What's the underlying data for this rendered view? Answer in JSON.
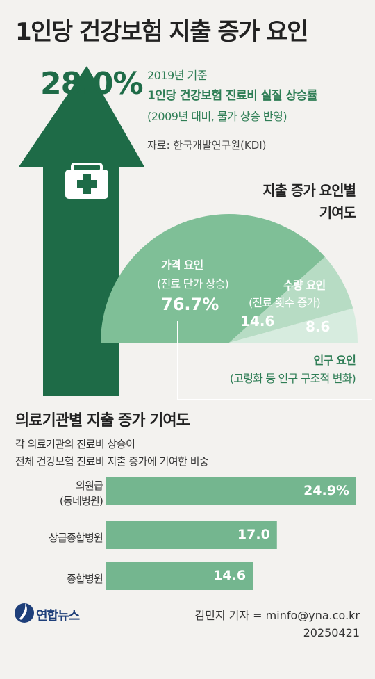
{
  "title": "1인당 건강보험 지출 증가 요인",
  "headline": {
    "rate": "28.0%",
    "note_line1": "2019년 기준",
    "note_line2": "1인당 건강보험 진료비 실질 상승률",
    "note_line3": "(2009년 대비, 물가 상승 반영)",
    "source": "자료: 한국개발연구원(KDI)"
  },
  "pie_section": {
    "title_line1": "지출 증가 요인별",
    "title_line2": "기여도"
  },
  "bar_section": {
    "title": "의료기관별 지출 증가 기여도",
    "desc_line1": "각 의료기관의 진료비 상승이",
    "desc_line2": "전체 건강보험 진료비 지출 증가에 기여한 비중"
  },
  "footer": {
    "logo": "연합뉴스",
    "byline": "김민지 기자 = minfo@yna.co.kr",
    "date": "20250421"
  },
  "colors": {
    "dark_green": "#1e6b47",
    "medium_green": "#7fbf97",
    "light_green": "#b7dcc4",
    "lightest_green": "#d7ecdf",
    "bar_green": "#74b68f",
    "navy": "#1e3f7a"
  },
  "icons": {
    "medical_kit": "medical-kit-icon",
    "logo_mark": "yonhap-logo-icon"
  },
  "chart_data": [
    {
      "type": "pie",
      "title": "지출 증가 요인별 기여도",
      "slices": [
        {
          "label": "가격 요인",
          "sublabel": "(진료 단가 상승)",
          "value": 76.7,
          "display": "76.7%"
        },
        {
          "label": "수량 요인",
          "sublabel": "(진료 횟수 증가)",
          "value": 14.6,
          "display": "14.6"
        },
        {
          "label": "인구 요인",
          "sublabel": "(고령화 등 인구 구조적 변화)",
          "value": 8.6,
          "display": "8.6"
        }
      ]
    },
    {
      "type": "bar",
      "title": "의료기관별 지출 증가 기여도",
      "categories": [
        "의원급\n(동네병원)",
        "상급종합병원",
        "종합병원"
      ],
      "category_lines": [
        [
          "의원급",
          "(동네병원)"
        ],
        [
          "상급종합병원"
        ],
        [
          "종합병원"
        ]
      ],
      "values": [
        24.9,
        17.0,
        14.6
      ],
      "display": [
        "24.9%",
        "17.0",
        "14.6"
      ]
    }
  ]
}
